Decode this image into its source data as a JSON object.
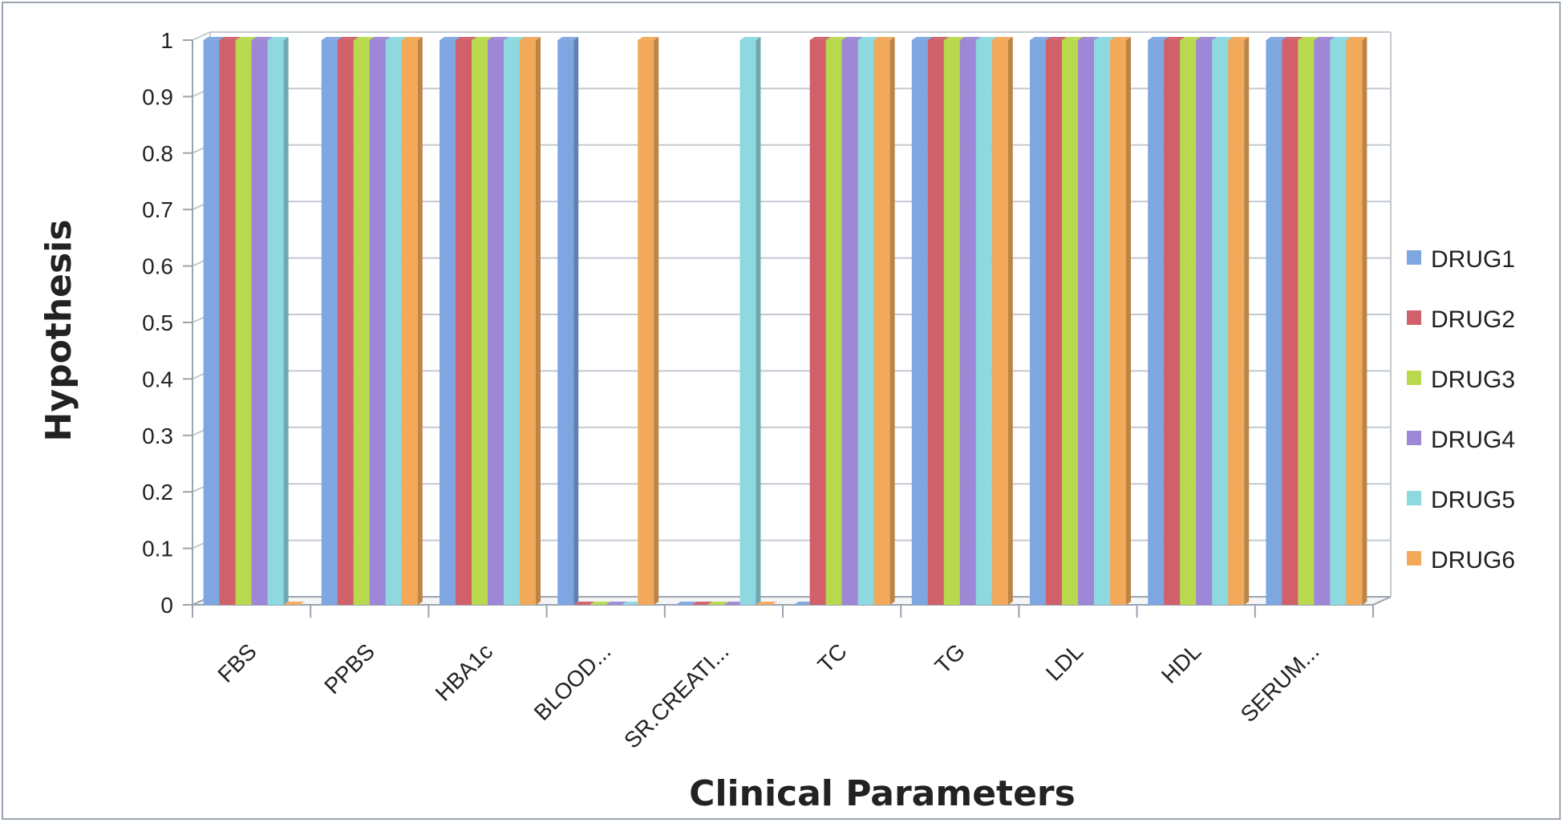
{
  "chart_data": {
    "type": "bar",
    "title": "",
    "xlabel": "Clinical Parameters",
    "ylabel": "Hypothesis",
    "ylim": [
      0,
      1
    ],
    "yticks": [
      "0",
      "0.1",
      "0.2",
      "0.3",
      "0.4",
      "0.5",
      "0.6",
      "0.7",
      "0.8",
      "0.9",
      "1"
    ],
    "categories": [
      "FBS",
      "PPBS",
      "HBA1c",
      "BLOOD...",
      "SR.CREATI...",
      "TC",
      "TG",
      "LDL",
      "HDL",
      "SERUM..."
    ],
    "series": [
      {
        "name": "DRUG1",
        "color": "#7ea6e0",
        "values": [
          1,
          1,
          1,
          1,
          0,
          0,
          1,
          1,
          1,
          1
        ]
      },
      {
        "name": "DRUG2",
        "color": "#d0606a",
        "values": [
          1,
          1,
          1,
          0,
          0,
          1,
          1,
          1,
          1,
          1
        ]
      },
      {
        "name": "DRUG3",
        "color": "#b8d94e",
        "values": [
          1,
          1,
          1,
          0,
          0,
          1,
          1,
          1,
          1,
          1
        ]
      },
      {
        "name": "DRUG4",
        "color": "#9d87d6",
        "values": [
          1,
          1,
          1,
          0,
          0,
          1,
          1,
          1,
          1,
          1
        ]
      },
      {
        "name": "DRUG5",
        "color": "#8ed8e0",
        "values": [
          1,
          1,
          1,
          0,
          1,
          1,
          1,
          1,
          1,
          1
        ]
      },
      {
        "name": "DRUG6",
        "color": "#f2a95a",
        "values": [
          0,
          1,
          1,
          1,
          0,
          1,
          1,
          1,
          1,
          1
        ]
      }
    ],
    "grid": true,
    "legend_position": "right"
  }
}
